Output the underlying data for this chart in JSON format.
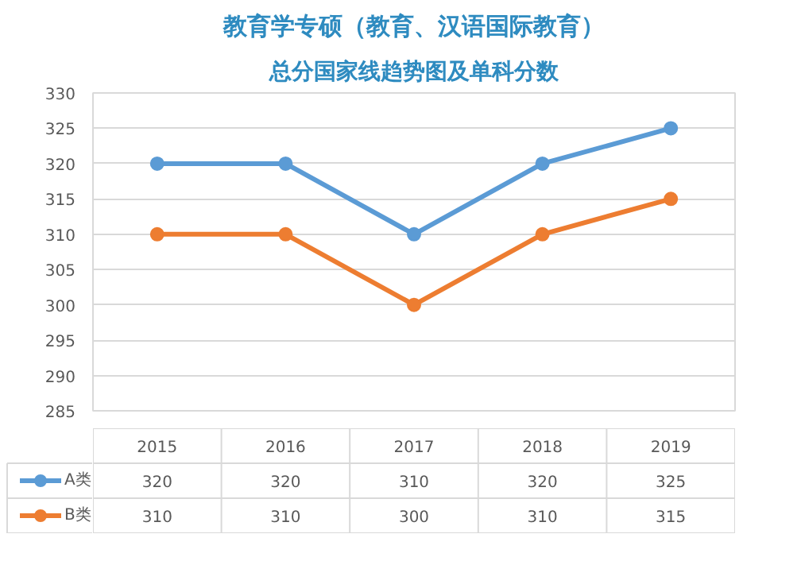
{
  "chart_data": {
    "type": "line",
    "title": "教育学专硕（教育、汉语国际教育）",
    "subtitle": "总分国家线趋势图及单科分数",
    "categories": [
      "2015",
      "2016",
      "2017",
      "2018",
      "2019"
    ],
    "series": [
      {
        "name": "A类",
        "color": "#5b9bd5",
        "values": [
          320,
          320,
          310,
          320,
          325
        ]
      },
      {
        "name": "B类",
        "color": "#ed7d31",
        "values": [
          310,
          310,
          300,
          310,
          315
        ]
      }
    ],
    "ylim": [
      285,
      330
    ],
    "yticks": [
      285,
      290,
      295,
      300,
      305,
      310,
      315,
      320,
      325,
      330
    ],
    "grid": "y",
    "legend": "bottom",
    "marker": "circle",
    "line_style": "solid",
    "data_labels": true,
    "tick_labels": "y"
  }
}
